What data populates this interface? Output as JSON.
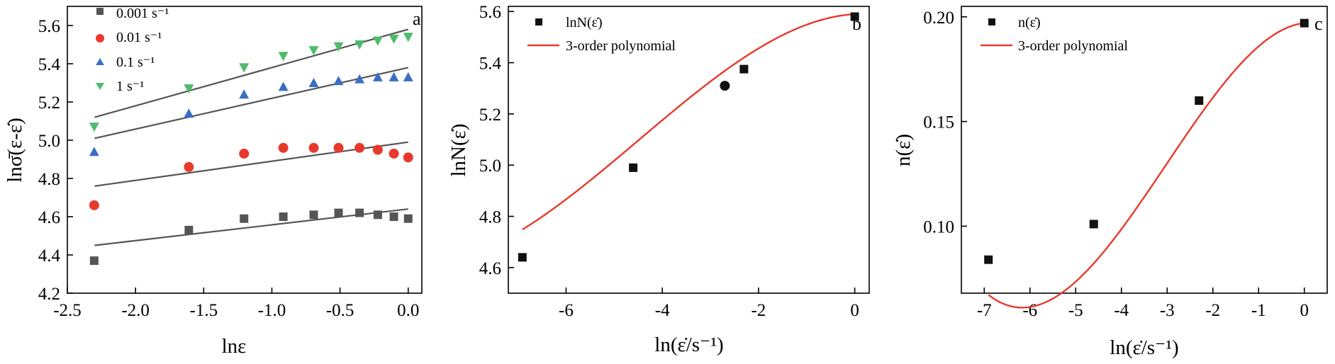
{
  "chart_data": [
    {
      "type": "scatter",
      "panel_letter": "a",
      "xlabel": "lnε",
      "ylabel": "lnσ̄(ε-ε̇)",
      "xlim": [
        -2.5,
        0.1
      ],
      "ylim": [
        4.2,
        5.7
      ],
      "x_ticks": [
        -2.5,
        -2.0,
        -1.5,
        -1.0,
        -0.5,
        0.0
      ],
      "x_tick_labels": [
        "-2.5",
        "-2.0",
        "-1.5",
        "-1.0",
        "-0.5",
        "0.0"
      ],
      "y_ticks": [
        4.2,
        4.4,
        4.6,
        4.8,
        5.0,
        5.2,
        5.4,
        5.6
      ],
      "y_tick_labels": [
        "4.2",
        "4.4",
        "4.6",
        "4.8",
        "5.0",
        "5.2",
        "5.4",
        "5.6"
      ],
      "x": [
        -2.303,
        -1.609,
        -1.204,
        -0.916,
        -0.693,
        -0.511,
        -0.357,
        -0.223,
        -0.105,
        0.0
      ],
      "series": [
        {
          "name": "0.001 s⁻¹",
          "marker": "square",
          "color": "#555555",
          "values": [
            4.37,
            4.53,
            4.59,
            4.6,
            4.61,
            4.62,
            4.62,
            4.61,
            4.6,
            4.59
          ],
          "fit": [
            [
              -2.3,
              4.45
            ],
            [
              0.0,
              4.64
            ]
          ]
        },
        {
          "name": "0.01 s⁻¹",
          "marker": "circle",
          "color": "#e8392c",
          "values": [
            4.66,
            4.86,
            4.93,
            4.96,
            4.96,
            4.96,
            4.96,
            4.95,
            4.93,
            4.91
          ],
          "fit": [
            [
              -2.3,
              4.76
            ],
            [
              0.0,
              4.99
            ]
          ]
        },
        {
          "name": "0.1 s⁻¹",
          "marker": "triangle-up",
          "color": "#3b6fc6",
          "values": [
            4.94,
            5.14,
            5.24,
            5.28,
            5.3,
            5.31,
            5.32,
            5.33,
            5.33,
            5.33
          ],
          "fit": [
            [
              -2.3,
              5.01
            ],
            [
              0.0,
              5.38
            ]
          ]
        },
        {
          "name": "1 s⁻¹",
          "marker": "triangle-down",
          "color": "#4dbb6b",
          "values": [
            5.07,
            5.27,
            5.38,
            5.44,
            5.47,
            5.49,
            5.5,
            5.52,
            5.53,
            5.54
          ],
          "fit": [
            [
              -2.3,
              5.12
            ],
            [
              0.0,
              5.58
            ]
          ]
        }
      ],
      "fit_color": "#555555",
      "grid": false,
      "legend": "top-left"
    },
    {
      "type": "scatter",
      "panel_letter": "b",
      "xlabel": "ln(ε̇/s⁻¹)",
      "ylabel": "lnN(ε̇)",
      "xlim": [
        -7.2,
        0.3
      ],
      "ylim": [
        4.5,
        5.62
      ],
      "x_ticks": [
        -6,
        -4,
        -2,
        0
      ],
      "x_tick_labels": [
        "-6",
        "-4",
        "-2",
        "0"
      ],
      "y_ticks": [
        4.6,
        4.8,
        5.0,
        5.2,
        5.4,
        5.6
      ],
      "y_tick_labels": [
        "4.6",
        "4.8",
        "5.0",
        "5.2",
        "5.4",
        "5.6"
      ],
      "series": [
        {
          "name": "lnN(ε̇)",
          "marker": "square",
          "color": "#111111",
          "x": [
            -6.908,
            -4.605,
            -2.303,
            0.0
          ],
          "y": [
            4.64,
            4.99,
            5.375,
            5.58
          ]
        }
      ],
      "extra_point": {
        "x": -2.7,
        "y": 5.31,
        "marker": "circle",
        "color": "#111111"
      },
      "fit": {
        "name": "3-order polynomial",
        "color": "#e8392c",
        "coefficients": [
          5.5896,
          0.0106,
          -0.03305,
          -0.002455
        ]
      },
      "grid": false,
      "legend": "top-left"
    },
    {
      "type": "scatter",
      "panel_letter": "c",
      "xlabel": "ln(ε̇/s⁻¹)",
      "ylabel": "n(ε̇)",
      "xlim": [
        -7.5,
        0.5
      ],
      "ylim": [
        0.068,
        0.205
      ],
      "x_ticks": [
        -7,
        -6,
        -5,
        -4,
        -3,
        -2,
        -1,
        0
      ],
      "x_tick_labels": [
        "-7",
        "-6",
        "-5",
        "-4",
        "-3",
        "-2",
        "-1",
        "0"
      ],
      "y_ticks": [
        0.1,
        0.15,
        0.2
      ],
      "y_tick_labels": [
        "0.10",
        "0.15",
        "0.20"
      ],
      "series": [
        {
          "name": "n(ε̇)",
          "marker": "square",
          "color": "#111111",
          "x": [
            -6.908,
            -4.605,
            -2.303,
            0.0
          ],
          "y": [
            0.084,
            0.101,
            0.16,
            0.197
          ]
        }
      ],
      "fit": {
        "name": "3-order polynomial",
        "color": "#e8392c",
        "coefficients": [
          0.197,
          0.0022,
          -0.01,
          -0.0011
        ]
      },
      "grid": false,
      "legend": "top-left"
    }
  ]
}
